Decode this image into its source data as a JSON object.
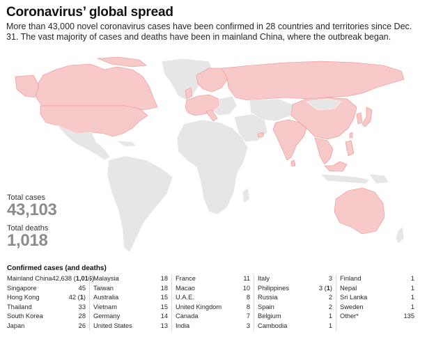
{
  "title": "Coronavirus’ global spread",
  "description": "More than 43,000 novel coronavirus cases have been confirmed in 28 countries and territories since Dec. 31. The vast majority of cases and deaths have been in mainland China, where the outbreak began.",
  "colors": {
    "affected": "#f8c9c9",
    "affected_stroke": "#ee8a8a",
    "unaffected": "#e6e6e6",
    "stat": "#8c8c8c"
  },
  "stats": {
    "cases_label": "Total cases",
    "cases_value": "43,103",
    "deaths_label": "Total deaths",
    "deaths_value": "1,018"
  },
  "table": {
    "title": "Confirmed cases (and deaths)",
    "columns": [
      [
        {
          "name": "Mainland China",
          "cases": "42,638",
          "deaths": "1,016"
        },
        {
          "name": "Singapore",
          "cases": "45"
        },
        {
          "name": "Hong Kong",
          "cases": "42",
          "deaths": "1"
        },
        {
          "name": "Thailand",
          "cases": "33"
        },
        {
          "name": "South Korea",
          "cases": "28"
        },
        {
          "name": "Japan",
          "cases": "26"
        }
      ],
      [
        {
          "name": "Malaysia",
          "cases": "18"
        },
        {
          "name": "Taiwan",
          "cases": "18"
        },
        {
          "name": "Australia",
          "cases": "15"
        },
        {
          "name": "Vietnam",
          "cases": "15"
        },
        {
          "name": "Germany",
          "cases": "14"
        },
        {
          "name": "United States",
          "cases": "13"
        }
      ],
      [
        {
          "name": "France",
          "cases": "11"
        },
        {
          "name": "Macao",
          "cases": "10"
        },
        {
          "name": "U.A.E.",
          "cases": "8"
        },
        {
          "name": "United Kingdom",
          "cases": "8"
        },
        {
          "name": "Canada",
          "cases": "7"
        },
        {
          "name": "India",
          "cases": "3"
        }
      ],
      [
        {
          "name": "Italy",
          "cases": "3"
        },
        {
          "name": "Philippines",
          "cases": "3",
          "deaths": "1"
        },
        {
          "name": "Russia",
          "cases": "2"
        },
        {
          "name": "Spain",
          "cases": "2"
        },
        {
          "name": "Belgium",
          "cases": "1"
        },
        {
          "name": "Cambodia",
          "cases": "1"
        }
      ],
      [
        {
          "name": "Finland",
          "cases": "1"
        },
        {
          "name": "Nepal",
          "cases": "1"
        },
        {
          "name": "Sri Lanka",
          "cases": "1"
        },
        {
          "name": "Sweden",
          "cases": "1"
        },
        {
          "name": "Other*",
          "cases": "135"
        }
      ]
    ]
  }
}
